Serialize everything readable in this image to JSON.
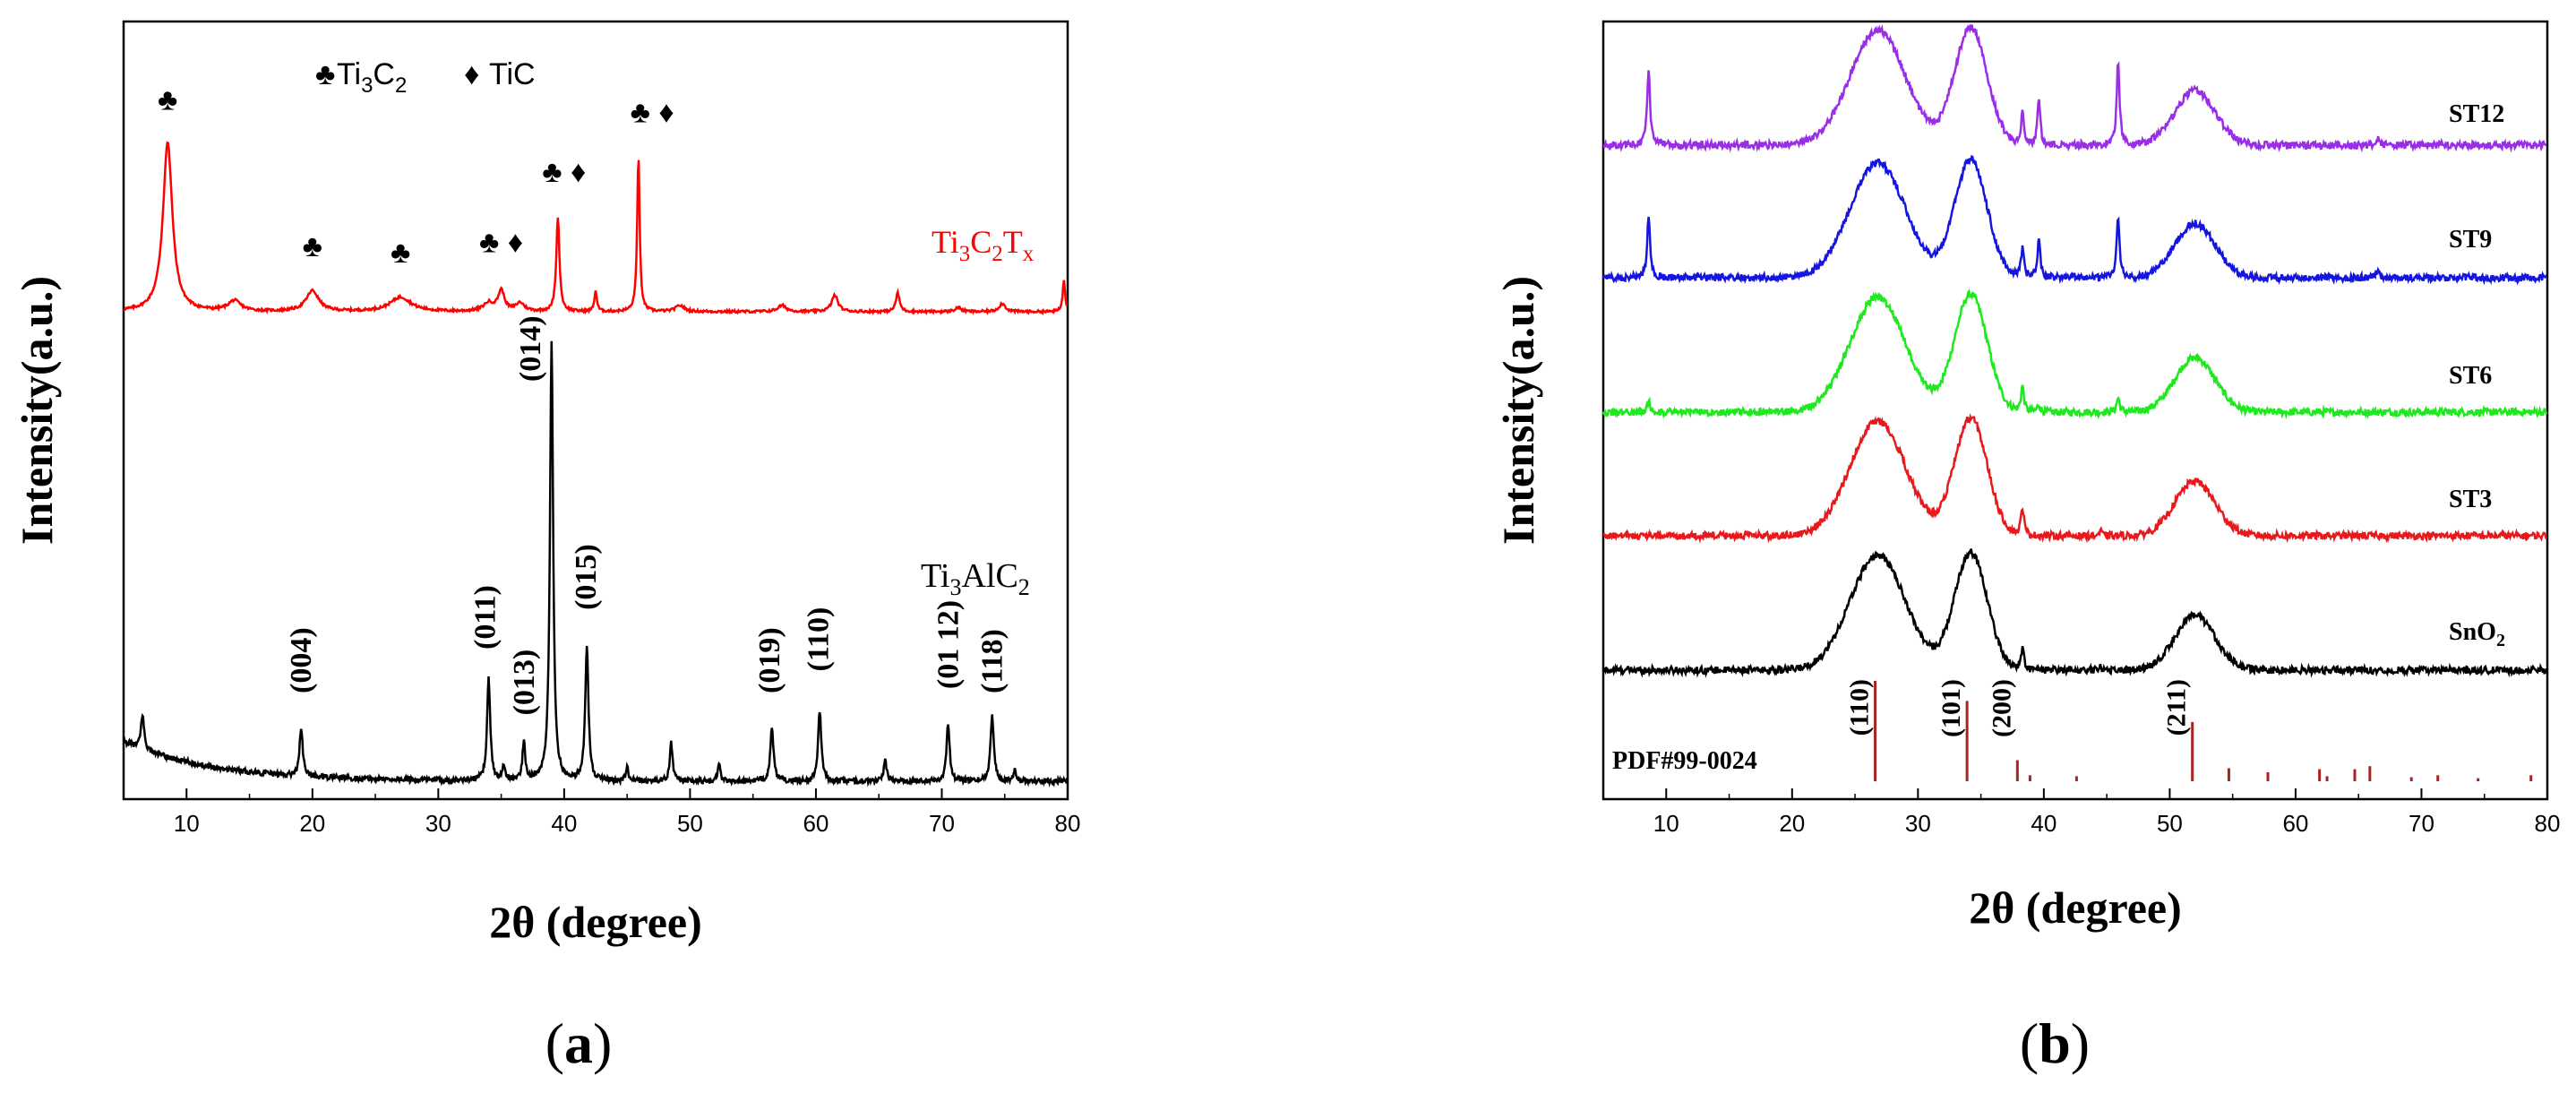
{
  "chart_data": [
    {
      "panel": "(a)",
      "panel_letter": "a",
      "type": "line",
      "xlabel": "2θ (degree)",
      "ylabel": "Intensity(a.u.)",
      "xlim": [
        5,
        80
      ],
      "xticks": [
        10,
        20,
        30,
        40,
        50,
        60,
        70,
        80
      ],
      "legend": {
        "club_label": "Ti3C2",
        "diamond_label": "TiC"
      },
      "series": [
        {
          "name": "Ti3C2Tx",
          "label_parts": [
            "Ti",
            "3",
            "C",
            "2",
            "T",
            "x"
          ],
          "color": "#ff0000",
          "baseline": 0.0,
          "peaks": [
            {
              "x": 8.5,
              "h": 0.82,
              "w": 0.45
            },
            {
              "x": 13.8,
              "h": 0.05,
              "w": 0.6
            },
            {
              "x": 20.0,
              "h": 0.1,
              "w": 0.6
            },
            {
              "x": 27.0,
              "h": 0.07,
              "w": 1.0
            },
            {
              "x": 34.0,
              "h": 0.04,
              "w": 0.5
            },
            {
              "x": 35.0,
              "h": 0.1,
              "w": 0.3
            },
            {
              "x": 36.5,
              "h": 0.04,
              "w": 0.4
            },
            {
              "x": 39.5,
              "h": 0.46,
              "w": 0.15
            },
            {
              "x": 42.5,
              "h": 0.1,
              "w": 0.12
            },
            {
              "x": 45.9,
              "h": 0.75,
              "w": 0.12
            },
            {
              "x": 49.2,
              "h": 0.03,
              "w": 0.4
            },
            {
              "x": 57.3,
              "h": 0.03,
              "w": 0.4
            },
            {
              "x": 61.5,
              "h": 0.08,
              "w": 0.3
            },
            {
              "x": 66.5,
              "h": 0.09,
              "w": 0.18
            },
            {
              "x": 71.3,
              "h": 0.02,
              "w": 0.3
            },
            {
              "x": 74.8,
              "h": 0.04,
              "w": 0.3
            },
            {
              "x": 79.7,
              "h": 0.15,
              "w": 0.12
            }
          ],
          "markers": [
            {
              "x": 8.5,
              "h": 0.98,
              "symbols": "♣"
            },
            {
              "x": 20.0,
              "h": 0.27,
              "symbols": "♣"
            },
            {
              "x": 27.0,
              "h": 0.24,
              "symbols": "♣"
            },
            {
              "x": 35.0,
              "h": 0.29,
              "symbols": "♣ ♦"
            },
            {
              "x": 40.0,
              "h": 0.63,
              "symbols": "♣ ♦"
            },
            {
              "x": 47.0,
              "h": 0.92,
              "symbols": "♣ ♦"
            }
          ]
        },
        {
          "name": "Ti3AlC2",
          "label_parts": [
            "Ti",
            "3",
            "AlC",
            "2"
          ],
          "color": "#000000",
          "baseline": 0.0,
          "peaks": [
            {
              "x": 6.5,
              "h": 0.08,
              "w": 0.15
            },
            {
              "x": 19.1,
              "h": 0.11,
              "w": 0.15
            },
            {
              "x": 34.0,
              "h": 0.23,
              "w": 0.15
            },
            {
              "x": 35.2,
              "h": 0.03,
              "w": 0.12
            },
            {
              "x": 36.8,
              "h": 0.09,
              "w": 0.13
            },
            {
              "x": 39.0,
              "h": 1.0,
              "w": 0.15
            },
            {
              "x": 41.8,
              "h": 0.31,
              "w": 0.15
            },
            {
              "x": 45.0,
              "h": 0.03,
              "w": 0.12
            },
            {
              "x": 48.5,
              "h": 0.09,
              "w": 0.13
            },
            {
              "x": 52.3,
              "h": 0.04,
              "w": 0.12
            },
            {
              "x": 56.5,
              "h": 0.12,
              "w": 0.15
            },
            {
              "x": 60.3,
              "h": 0.16,
              "w": 0.15
            },
            {
              "x": 65.5,
              "h": 0.05,
              "w": 0.13
            },
            {
              "x": 70.5,
              "h": 0.13,
              "w": 0.15
            },
            {
              "x": 74.0,
              "h": 0.15,
              "w": 0.16
            },
            {
              "x": 75.8,
              "h": 0.03,
              "w": 0.12
            }
          ],
          "annotations": [
            {
              "label": "(004)",
              "x": 19.1,
              "h": 0.2
            },
            {
              "label": "(011)",
              "x": 33.7,
              "h": 0.3
            },
            {
              "label": "(013)",
              "x": 36.8,
              "h": 0.15
            },
            {
              "label": "(014)",
              "x": 37.3,
              "h": 0.91
            },
            {
              "label": "(015)",
              "x": 41.7,
              "h": 0.39
            },
            {
              "label": "(019)",
              "x": 56.3,
              "h": 0.2
            },
            {
              "label": "(110)",
              "x": 60.2,
              "h": 0.25
            },
            {
              "label": "(01 12)",
              "x": 70.5,
              "h": 0.21
            },
            {
              "label": "(118)",
              "x": 74.0,
              "h": 0.2
            }
          ]
        }
      ]
    },
    {
      "panel": "(b)",
      "panel_letter": "b",
      "type": "line",
      "xlabel": "2θ (degree)",
      "ylabel": "Intensity(a.u.)",
      "xlim": [
        5,
        80
      ],
      "xticks": [
        10,
        20,
        30,
        40,
        50,
        60,
        70,
        80
      ],
      "reference": {
        "label": "PDF#99-0024",
        "color": "#aa2222",
        "lines": [
          {
            "x": 26.6,
            "h": 1.0
          },
          {
            "x": 33.9,
            "h": 0.8
          },
          {
            "x": 37.9,
            "h": 0.21
          },
          {
            "x": 38.9,
            "h": 0.06
          },
          {
            "x": 42.6,
            "h": 0.05
          },
          {
            "x": 51.8,
            "h": 0.59
          },
          {
            "x": 54.7,
            "h": 0.13
          },
          {
            "x": 57.8,
            "h": 0.09
          },
          {
            "x": 61.9,
            "h": 0.12
          },
          {
            "x": 62.5,
            "h": 0.05
          },
          {
            "x": 64.7,
            "h": 0.12
          },
          {
            "x": 65.9,
            "h": 0.15
          },
          {
            "x": 69.2,
            "h": 0.04
          },
          {
            "x": 71.3,
            "h": 0.06
          },
          {
            "x": 74.5,
            "h": 0.03
          },
          {
            "x": 78.7,
            "h": 0.06
          }
        ],
        "hkl": [
          {
            "label": "(110)",
            "x": 26.6
          },
          {
            "label": "(101)",
            "x": 33.9
          },
          {
            "label": "(200)",
            "x": 37.9
          },
          {
            "label": "(211)",
            "x": 51.8
          }
        ]
      },
      "series": [
        {
          "name": "SnO2",
          "label_parts": [
            "SnO",
            "2"
          ],
          "color": "#000000",
          "sharp": [
            {
              "x": 38.3,
              "h": 0.15
            },
            {
              "x": 44.5,
              "h": 0.03
            }
          ]
        },
        {
          "name": "ST3",
          "label_parts": [
            "ST3"
          ],
          "color": "#e8191c",
          "sharp": [
            {
              "x": 38.3,
              "h": 0.2
            },
            {
              "x": 44.5,
              "h": 0.03
            }
          ]
        },
        {
          "name": "ST6",
          "label_parts": [
            "ST6"
          ],
          "color": "#1ee81e",
          "sharp": [
            {
              "x": 8.6,
              "h": 0.08
            },
            {
              "x": 38.3,
              "h": 0.18
            },
            {
              "x": 39.6,
              "h": 0.05
            },
            {
              "x": 45.9,
              "h": 0.1
            }
          ]
        },
        {
          "name": "ST9",
          "label_parts": [
            "ST9"
          ],
          "color": "#1515e0",
          "sharp": [
            {
              "x": 8.6,
              "h": 0.42
            },
            {
              "x": 38.3,
              "h": 0.2
            },
            {
              "x": 39.6,
              "h": 0.25
            },
            {
              "x": 45.9,
              "h": 0.42
            },
            {
              "x": 66.5,
              "h": 0.05
            }
          ]
        },
        {
          "name": "ST12",
          "label_parts": [
            "ST12"
          ],
          "color": "#9a2ee6",
          "sharp": [
            {
              "x": 8.6,
              "h": 0.52
            },
            {
              "x": 38.3,
              "h": 0.22
            },
            {
              "x": 39.6,
              "h": 0.3
            },
            {
              "x": 45.9,
              "h": 0.58
            },
            {
              "x": 66.5,
              "h": 0.05
            }
          ]
        }
      ],
      "broad_peaks": [
        {
          "x": 26.8,
          "h": 0.8,
          "w": 2.2
        },
        {
          "x": 34.2,
          "h": 0.82,
          "w": 1.3
        },
        {
          "x": 52.0,
          "h": 0.38,
          "w": 1.6
        }
      ]
    }
  ]
}
